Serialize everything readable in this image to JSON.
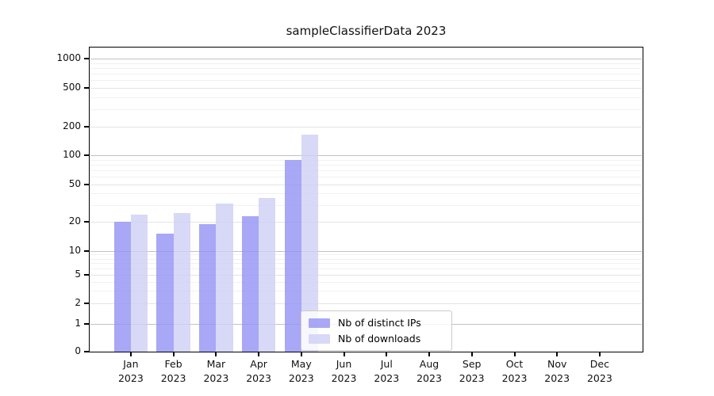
{
  "title": "sampleClassifierData 2023",
  "chart_data": {
    "type": "bar",
    "title": "sampleClassifierData 2023",
    "categories": [
      [
        "Jan",
        "2023"
      ],
      [
        "Feb",
        "2023"
      ],
      [
        "Mar",
        "2023"
      ],
      [
        "Apr",
        "2023"
      ],
      [
        "May",
        "2023"
      ],
      [
        "Jun",
        "2023"
      ],
      [
        "Jul",
        "2023"
      ],
      [
        "Aug",
        "2023"
      ],
      [
        "Sep",
        "2023"
      ],
      [
        "Oct",
        "2023"
      ],
      [
        "Nov",
        "2023"
      ],
      [
        "Dec",
        "2023"
      ]
    ],
    "series": [
      {
        "name": "Nb of distinct IPs",
        "color": "#9292f4",
        "values": [
          20,
          15,
          19,
          23,
          90,
          0,
          0,
          0,
          0,
          0,
          0,
          0
        ]
      },
      {
        "name": "Nb of downloads",
        "color": "#cecef5",
        "values": [
          24,
          25,
          31,
          36,
          165,
          0,
          0,
          0,
          0,
          0,
          0,
          0
        ]
      }
    ],
    "xlabel": "",
    "ylabel": "",
    "yscale": "symlog",
    "yticks": [
      0,
      1,
      2,
      5,
      10,
      20,
      50,
      100,
      200,
      500,
      1000
    ],
    "minor_gridline_values": [
      3,
      4,
      6,
      7,
      8,
      9,
      30,
      40,
      60,
      70,
      80,
      90,
      300,
      400,
      600,
      700,
      800,
      900
    ],
    "ylim": [
      0,
      1300
    ],
    "grid": true,
    "legend_position": "lower center"
  },
  "colors": {
    "bar_distinct_ips": "#9292f4",
    "bar_downloads": "#cecef5",
    "grid_decade": "#c2c2c2",
    "grid_major": "#e4e4e4",
    "grid_minor": "#f1f1f1",
    "axis_frame": "#000000",
    "legend_border": "#cccccc"
  }
}
